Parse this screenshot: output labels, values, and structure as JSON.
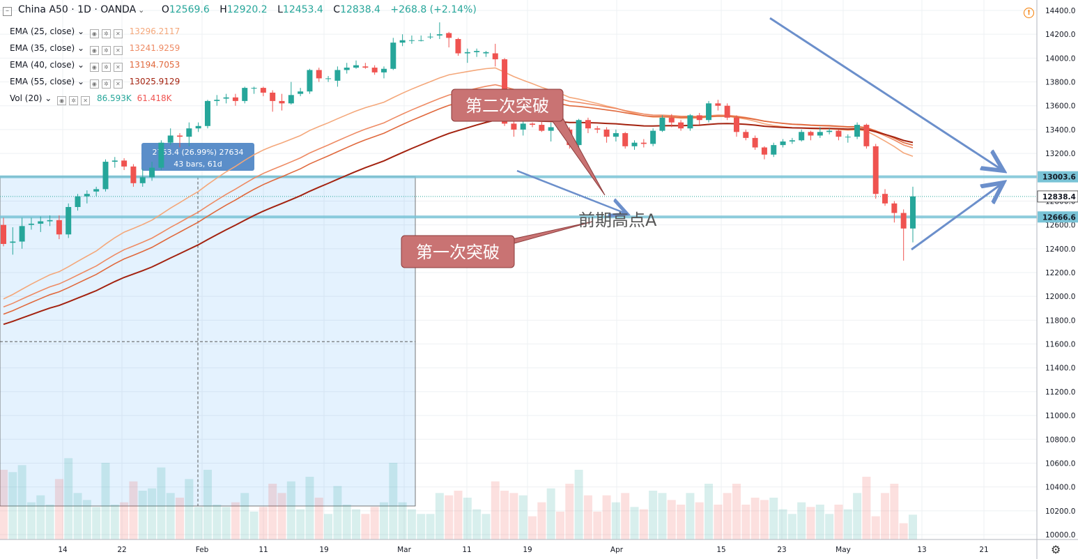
{
  "header": {
    "symbol": "China A50 · 1D · OANDA",
    "open_label": "O",
    "open": "12569.6",
    "high_label": "H",
    "high": "12920.2",
    "low_label": "L",
    "low": "12453.4",
    "close_label": "C",
    "close": "12838.4",
    "change": "+268.8 (+2.14%)"
  },
  "legend": [
    {
      "name": "EMA (25, close)",
      "value": "13296.2117",
      "color": "#f4a77a"
    },
    {
      "name": "EMA (35, close)",
      "value": "13241.9259",
      "color": "#ee8a63"
    },
    {
      "name": "EMA (40, close)",
      "value": "13194.7053",
      "color": "#e0683c"
    },
    {
      "name": "EMA (55, close)",
      "value": "13025.9129",
      "color": "#a3220f"
    }
  ],
  "volume_legend": {
    "name": "Vol (20)",
    "value1": "86.593K",
    "value2": "61.418K",
    "color1": "#26a69a",
    "color2": "#ef5350"
  },
  "measure_box": {
    "line1": "2763.4 (26.99%) 27634",
    "line2": "43 bars, 61d"
  },
  "annotations": {
    "first_breakout": "第一次突破",
    "second_breakout": "第二次突破",
    "prior_high": "前期高点A"
  },
  "icons": [
    "collapse-icon",
    "eye-icon",
    "gear-icon",
    "close-icon",
    "warning-icon",
    "settings-gear-icon"
  ],
  "colors": {
    "up": "#26a69a",
    "down": "#ef5350",
    "level_line": "#79c3d6",
    "arrow": "#6b8fcb",
    "callout": "#c97373"
  },
  "chart_data": {
    "type": "candlestick",
    "title": "China A50 · 1D · OANDA",
    "y_axis": {
      "ticks": [
        "14400.0",
        "14200.0",
        "14000.0",
        "13800.0",
        "13600.0",
        "13400.0",
        "13200.0",
        "13000.0",
        "12800.0",
        "12600.0",
        "12400.0",
        "12200.0",
        "12000.0",
        "11800.0",
        "11600.0",
        "11400.0",
        "11200.0",
        "11000.0",
        "10800.0",
        "10600.0",
        "10400.0",
        "10200.0",
        "10000.0"
      ],
      "range": [
        9990,
        14420
      ],
      "price_labels": [
        {
          "value": 13003.6,
          "label": "13003.6",
          "style": "level"
        },
        {
          "value": 12838.4,
          "label": "12838.4",
          "style": "last"
        },
        {
          "value": 12666.6,
          "label": "12666.6",
          "style": "level"
        }
      ]
    },
    "x_axis": {
      "ticks": [
        "14",
        "22",
        "Feb",
        "11",
        "19",
        "Mar",
        "11",
        "19",
        "Apr",
        "15",
        "23",
        "May",
        "13",
        "21"
      ]
    },
    "horizontal_levels": [
      13003.6,
      12666.6,
      12838.4
    ],
    "candles": [
      [
        12600,
        12440,
        12660,
        12420
      ],
      [
        12450,
        12460,
        12580,
        12350
      ],
      [
        12460,
        12590,
        12660,
        12400
      ],
      [
        12600,
        12610,
        12660,
        12560
      ],
      [
        12610,
        12630,
        12670,
        12540
      ],
      [
        12630,
        12640,
        12680,
        12590
      ],
      [
        12640,
        12520,
        12680,
        12480
      ],
      [
        12520,
        12750,
        12780,
        12490
      ],
      [
        12750,
        12840,
        12860,
        12720
      ],
      [
        12840,
        12860,
        12890,
        12780
      ],
      [
        12880,
        12900,
        12920,
        12840
      ],
      [
        12900,
        13130,
        13150,
        12880
      ],
      [
        13130,
        13140,
        13170,
        13080
      ],
      [
        13140,
        13090,
        13160,
        13060
      ],
      [
        13090,
        12950,
        13110,
        12920
      ],
      [
        12950,
        13000,
        13070,
        12920
      ],
      [
        13000,
        13080,
        13130,
        12970
      ],
      [
        13080,
        13290,
        13310,
        13060
      ],
      [
        13290,
        13350,
        13410,
        13270
      ],
      [
        13350,
        13340,
        13370,
        13250
      ],
      [
        13340,
        13410,
        13460,
        13260
      ],
      [
        13410,
        13430,
        13460,
        13380
      ],
      [
        13430,
        13640,
        13650,
        13410
      ],
      [
        13640,
        13650,
        13690,
        13600
      ],
      [
        13660,
        13670,
        13700,
        13620
      ],
      [
        13670,
        13640,
        13700,
        13600
      ],
      [
        13640,
        13750,
        13760,
        13620
      ],
      [
        13750,
        13750,
        13760,
        13700
      ],
      [
        13750,
        13710,
        13760,
        13680
      ],
      [
        13710,
        13640,
        13730,
        13550
      ],
      [
        13640,
        13620,
        13700,
        13560
      ],
      [
        13620,
        13690,
        13800,
        13610
      ],
      [
        13700,
        13720,
        13750,
        13680
      ],
      [
        13720,
        13900,
        13910,
        13700
      ],
      [
        13900,
        13830,
        13920,
        13800
      ],
      [
        13830,
        13830,
        13850,
        13800
      ],
      [
        13810,
        13900,
        13930,
        13760
      ],
      [
        13900,
        13920,
        13960,
        13870
      ],
      [
        13920,
        13940,
        13980,
        13910
      ],
      [
        13930,
        13920,
        13960,
        13910
      ],
      [
        13920,
        13880,
        13940,
        13860
      ],
      [
        13880,
        13910,
        13930,
        13830
      ],
      [
        13910,
        14130,
        14170,
        13900
      ],
      [
        14130,
        14150,
        14200,
        14100
      ],
      [
        14150,
        14150,
        14190,
        14120
      ],
      [
        14150,
        14150,
        14190,
        14140
      ],
      [
        14180,
        14180,
        14210,
        14160
      ],
      [
        14190,
        14200,
        14300,
        14160
      ],
      [
        14210,
        14170,
        14220,
        14090
      ],
      [
        14160,
        14040,
        14170,
        14020
      ],
      [
        14040,
        14050,
        14080,
        13960
      ],
      [
        14050,
        14060,
        14080,
        14010
      ],
      [
        14040,
        14050,
        14060,
        14010
      ],
      [
        14040,
        13990,
        14120,
        13930
      ],
      [
        13990,
        13450,
        14000,
        13430
      ],
      [
        13450,
        13400,
        13480,
        13340
      ],
      [
        13400,
        13450,
        13480,
        13350
      ],
      [
        13450,
        13440,
        13460,
        13420
      ],
      [
        13440,
        13390,
        13480,
        13380
      ],
      [
        13390,
        13420,
        13460,
        13300
      ],
      [
        13420,
        13400,
        13440,
        13380
      ],
      [
        13400,
        13270,
        13420,
        13240
      ],
      [
        13270,
        13480,
        13490,
        13250
      ],
      [
        13480,
        13410,
        13500,
        13370
      ],
      [
        13410,
        13400,
        13430,
        13370
      ],
      [
        13400,
        13340,
        13420,
        13290
      ],
      [
        13340,
        13370,
        13400,
        13300
      ],
      [
        13370,
        13260,
        13380,
        13240
      ],
      [
        13260,
        13290,
        13310,
        13230
      ],
      [
        13290,
        13280,
        13320,
        13250
      ],
      [
        13280,
        13390,
        13410,
        13260
      ],
      [
        13390,
        13500,
        13520,
        13380
      ],
      [
        13500,
        13460,
        13530,
        13420
      ],
      [
        13460,
        13410,
        13480,
        13390
      ],
      [
        13410,
        13520,
        13530,
        13390
      ],
      [
        13520,
        13480,
        13540,
        13440
      ],
      [
        13480,
        13620,
        13640,
        13460
      ],
      [
        13620,
        13600,
        13650,
        13560
      ],
      [
        13600,
        13500,
        13620,
        13480
      ],
      [
        13500,
        13380,
        13520,
        13340
      ],
      [
        13380,
        13330,
        13400,
        13310
      ],
      [
        13330,
        13250,
        13350,
        13230
      ],
      [
        13250,
        13190,
        13260,
        13150
      ],
      [
        13190,
        13270,
        13290,
        13170
      ],
      [
        13270,
        13300,
        13320,
        13250
      ],
      [
        13300,
        13310,
        13330,
        13280
      ],
      [
        13310,
        13380,
        13400,
        13300
      ],
      [
        13380,
        13350,
        13390,
        13310
      ],
      [
        13350,
        13380,
        13420,
        13330
      ],
      [
        13380,
        13390,
        13410,
        13360
      ],
      [
        13390,
        13340,
        13400,
        13310
      ],
      [
        13340,
        13340,
        13360,
        13290
      ],
      [
        13340,
        13440,
        13460,
        13320
      ],
      [
        13440,
        13260,
        13450,
        13240
      ],
      [
        13260,
        12860,
        13280,
        12820
      ],
      [
        12860,
        12780,
        12900,
        12760
      ],
      [
        12780,
        12700,
        12800,
        12620
      ],
      [
        12700,
        12569.6,
        12730,
        12300
      ],
      [
        12569.6,
        12838.4,
        12920.2,
        12453.4
      ]
    ],
    "ema_series": [
      {
        "name": "EMA (25, close)",
        "color": "#f4a77a",
        "last": 13296.2117
      },
      {
        "name": "EMA (35, close)",
        "color": "#ee8a63",
        "last": 13241.9259
      },
      {
        "name": "EMA (40, close)",
        "color": "#e0683c",
        "last": 13194.7053
      },
      {
        "name": "EMA (55, close)",
        "color": "#a3220f",
        "last": 13025.9129
      }
    ],
    "volume": {
      "name": "Vol (20)",
      "value": "86.593K",
      "ma": "61.418K"
    },
    "measure": {
      "change": 2763.4,
      "percent": 26.99,
      "ticks": 27634,
      "bars": 43,
      "days": 61
    }
  }
}
